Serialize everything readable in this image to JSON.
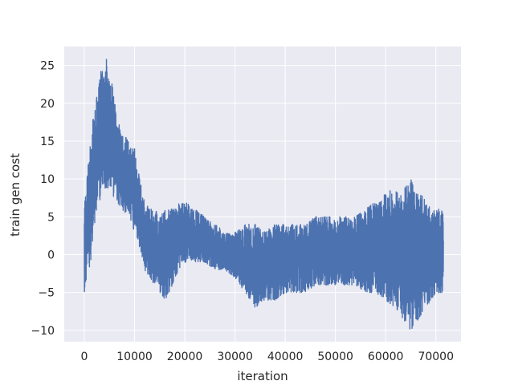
{
  "chart_data": {
    "type": "line",
    "title": "",
    "xlabel": "iteration",
    "ylabel": "train gen cost",
    "xlim": [
      -4000,
      75000
    ],
    "ylim": [
      -11.5,
      27.5
    ],
    "x_ticks": [
      0,
      10000,
      20000,
      30000,
      40000,
      50000,
      60000,
      70000
    ],
    "x_tick_labels": [
      "0",
      "10000",
      "20000",
      "30000",
      "40000",
      "50000",
      "60000",
      "70000"
    ],
    "y_ticks": [
      -10,
      -5,
      0,
      5,
      10,
      15,
      20,
      25
    ],
    "y_tick_labels": [
      "−10",
      "−5",
      "0",
      "5",
      "10",
      "15",
      "20",
      "25"
    ],
    "grid": true,
    "style": {
      "background": "#eaeaf2",
      "grid_color": "#ffffff",
      "line_color": "#4c72b0"
    },
    "series": [
      {
        "x": [
          0,
          1500,
          2500,
          3500,
          4500,
          5500,
          6500,
          7500,
          9000,
          10000,
          11000,
          12000,
          13000,
          14000,
          15000,
          16000,
          17000,
          18000,
          19000,
          20000,
          22000,
          24000,
          26000,
          28000,
          30000,
          32000,
          34000,
          36000,
          38000,
          40000,
          42000,
          44000,
          46000,
          48000,
          50000,
          52000,
          54000,
          56000,
          58000,
          60000,
          62000,
          63000,
          64000,
          65000,
          66000,
          67000,
          68000,
          69000,
          70000,
          71500
        ],
        "y_min": [
          -5,
          0,
          6,
          8,
          9,
          8,
          7,
          6,
          5,
          3,
          1,
          -2,
          -3,
          -4,
          -5,
          -6,
          -5,
          -3,
          -2,
          -1,
          -1,
          -1,
          -2,
          -2,
          -3,
          -5,
          -7,
          -6,
          -6,
          -5,
          -5,
          -5,
          -4,
          -4,
          -4,
          -4,
          -4,
          -5,
          -5,
          -6,
          -7,
          -8,
          -9,
          -10,
          -9,
          -8,
          -7,
          -6,
          -5,
          -5
        ],
        "y_max": [
          7,
          17,
          21,
          25,
          26,
          23,
          18,
          16,
          15,
          14,
          10,
          7,
          6,
          6,
          5,
          6,
          6,
          6,
          7,
          7,
          6,
          5,
          4,
          3,
          3,
          4,
          4,
          3,
          4,
          4,
          4,
          4,
          5,
          5,
          5,
          5,
          5,
          6,
          7,
          8,
          9,
          8,
          9,
          10,
          8,
          8,
          7,
          6,
          6,
          6
        ]
      }
    ]
  }
}
